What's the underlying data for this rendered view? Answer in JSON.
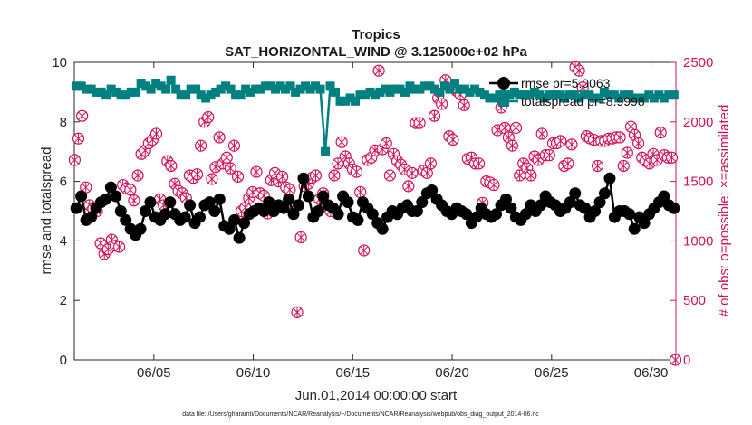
{
  "chart_data": {
    "type": "line",
    "title": "Tropics",
    "subtitle": "SAT_HORIZONTAL_WIND @ 3.125000e+02 hPa",
    "xlabel": "Jun.01,2014 00:00:00 start",
    "ylabel": "rmse and totalspread",
    "ylabel_right": "# of obs: o=possible; ×=assimilated",
    "footer": "data file: /Users/gharamti/Documents/NCAR/Reanalysis/~/Documents/NCAR/Reanalysis/webpub/obs_diag_output_2014-06.nc",
    "xlim": [
      1.0,
      31.25
    ],
    "ylim": [
      0,
      10
    ],
    "ylim_right": [
      0,
      2500
    ],
    "x_ticks": [
      5,
      10,
      15,
      20,
      25,
      30
    ],
    "x_tick_labels": [
      "06/05",
      "06/10",
      "06/15",
      "06/20",
      "06/25",
      "06/30"
    ],
    "y_ticks": [
      0,
      2,
      4,
      6,
      8,
      10
    ],
    "y_tick_labels": [
      "0",
      "2",
      "4",
      "6",
      "8",
      "10"
    ],
    "y_ticks_right": [
      0,
      500,
      1000,
      1500,
      2000,
      2500
    ],
    "y_tick_labels_right": [
      "0",
      "500",
      "1000",
      "1500",
      "2000",
      "2500"
    ],
    "legend": [
      "rmse pr=5.0063",
      "totalspread pr=8.9998"
    ],
    "colors": {
      "rmse": "#000000",
      "totalspread": "#008080",
      "obs": "#d0105a",
      "axis": "#262626"
    },
    "series": [
      {
        "name": "rmse",
        "axis": "left",
        "values": [
          5.1,
          5.5,
          4.7,
          4.8,
          5.1,
          5.3,
          5.4,
          5.8,
          5.5,
          5.0,
          4.7,
          4.4,
          4.2,
          4.4,
          5.0,
          5.3,
          4.8,
          4.7,
          4.9,
          5.3,
          4.9,
          4.7,
          4.8,
          5.2,
          4.6,
          4.8,
          5.2,
          5.3,
          5.0,
          5.4,
          4.5,
          4.4,
          4.7,
          4.1,
          4.6,
          4.9,
          5.0,
          5.1,
          5.0,
          5.3,
          5.0,
          5.2,
          5.1,
          5.4,
          4.9,
          5.2,
          6.1,
          5.5,
          4.8,
          5.0,
          5.5,
          5.2,
          5.1,
          4.9,
          5.5,
          5.3,
          4.8,
          4.7,
          5.3,
          5.1,
          4.9,
          4.6,
          4.4,
          4.8,
          5.0,
          4.9,
          5.1,
          5.2,
          5.0,
          5.0,
          5.3,
          5.6,
          5.7,
          5.4,
          5.2,
          5.0,
          4.9,
          5.1,
          5.0,
          4.9,
          4.6,
          4.8,
          5.1,
          4.9,
          4.8,
          4.9,
          5.2,
          5.4,
          5.1,
          4.8,
          4.7,
          4.9,
          5.2,
          5.0,
          5.2,
          5.5,
          5.3,
          5.2,
          5.0,
          5.1,
          5.3,
          5.6,
          5.2,
          5.1,
          4.8,
          5.0,
          5.3,
          5.6,
          6.1,
          4.8,
          5.0,
          5.0,
          4.9,
          4.4,
          4.8,
          4.6,
          4.9,
          5.1,
          5.3,
          5.5,
          5.2,
          5.1
        ]
      },
      {
        "name": "totalspread",
        "axis": "left",
        "values": [
          9.2,
          9.2,
          9.1,
          9.1,
          9.0,
          9.0,
          8.9,
          9.1,
          9.0,
          8.9,
          8.9,
          9.0,
          9.0,
          9.3,
          9.2,
          9.1,
          9.3,
          9.2,
          9.1,
          9.4,
          9.1,
          8.9,
          8.9,
          9.1,
          9.1,
          8.9,
          8.8,
          8.9,
          9.0,
          9.1,
          9.2,
          9.1,
          8.9,
          8.9,
          9.1,
          9.0,
          9.1,
          9.1,
          9.2,
          9.2,
          9.1,
          9.2,
          9.1,
          9.2,
          9.0,
          9.1,
          9.2,
          9.1,
          9.2,
          9.1,
          7.0,
          9.2,
          9.0,
          8.7,
          8.7,
          8.8,
          8.7,
          8.9,
          8.9,
          9.0,
          8.9,
          9.0,
          9.1,
          9.0,
          9.1,
          9.1,
          9.0,
          9.2,
          9.1,
          9.1,
          9.2,
          9.2,
          9.1,
          9.0,
          9.2,
          9.1,
          9.3,
          9.1,
          9.1,
          9.0,
          9.1,
          9.0,
          8.9,
          8.8,
          8.8,
          8.9,
          8.9,
          8.9,
          9.0,
          8.9,
          8.9,
          8.9,
          9.0,
          8.9,
          8.8,
          8.9,
          8.9,
          8.9,
          8.8,
          8.9,
          8.9,
          8.8,
          8.9,
          8.9,
          8.8,
          8.8,
          9.0,
          8.9,
          8.9,
          8.8,
          8.9,
          8.9,
          8.8,
          8.8,
          8.8,
          8.9,
          8.8,
          8.9,
          8.8,
          8.9,
          8.9
        ]
      },
      {
        "name": "obs",
        "axis": "right",
        "marker": "circle-x",
        "values": [
          1680,
          1860,
          2050,
          1450,
          1300,
          1270,
          1250,
          980,
          890,
          930,
          1010,
          960,
          950,
          1470,
          1440,
          1430,
          1340,
          1550,
          1730,
          1760,
          1820,
          1850,
          1900,
          1350,
          1300,
          1670,
          1630,
          1480,
          1420,
          1400,
          1360,
          1550,
          1530,
          1560,
          1800,
          2000,
          2040,
          1520,
          1620,
          1870,
          1650,
          1700,
          1610,
          1800,
          1540,
          1250,
          1280,
          1360,
          1410,
          1580,
          1400,
          1380,
          1230,
          1510,
          1570,
          1500,
          1540,
          1450,
          1430,
          1300,
          400,
          1030,
          1460,
          1480,
          1530,
          1550,
          1350,
          1400,
          1290,
          1250,
          1550,
          1650,
          1830,
          1710,
          1650,
          1600,
          1580,
          1410,
          920,
          1680,
          1700,
          1760,
          2430,
          1770,
          1820,
          1550,
          1730,
          1670,
          1640,
          1600,
          1460,
          1570,
          1990,
          1990,
          1590,
          1570,
          1650,
          2050,
          2200,
          2150,
          2350,
          1880,
          1850,
          2260,
          2230,
          2140,
          1690,
          1700,
          1650,
          1650,
          1320,
          1500,
          1490,
          1470,
          1930,
          2120,
          1950,
          1870,
          1800,
          1950,
          1550,
          1650,
          1610,
          1550,
          1710,
          1680,
          1900,
          1720,
          1720,
          1820,
          1820,
          1840,
          1630,
          1650,
          1810,
          2460,
          2430,
          2290,
          1880,
          1860,
          1850,
          1630,
          1840,
          1840,
          1860,
          1860,
          1870,
          1870,
          1630,
          1740,
          1960,
          1890,
          1820,
          1700,
          1670,
          1650,
          1730,
          1680,
          1910,
          1720,
          1700,
          1700,
          0
        ]
      }
    ]
  }
}
